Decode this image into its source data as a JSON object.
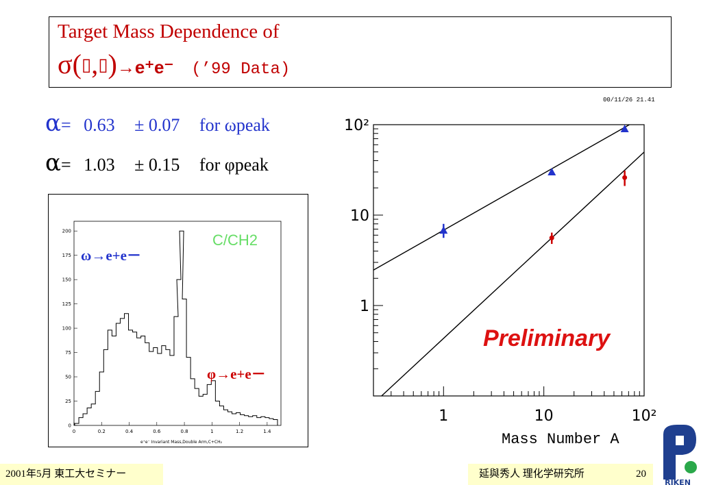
{
  "title": {
    "line1": "Target Mass Dependence of",
    "sigma": "σ(",
    "sym1": "▯",
    "comma": ",",
    "sym2": "▯",
    "close": ")",
    "arrow": "→",
    "products": "e⁺e⁻",
    "data_tag": "(’99 Data)"
  },
  "results": [
    {
      "alpha": "α",
      "eq": "=",
      "value": "0.63",
      "pm": "±",
      "error": "0.07",
      "label": "for ωpeak",
      "color": "#2233cc"
    },
    {
      "alpha": "α",
      "eq": "=",
      "value": "1.03",
      "pm": "±",
      "error": "0.15",
      "label": "for φpeak",
      "color": "#000000"
    }
  ],
  "stamp": "00/11/26  21.41",
  "footer": {
    "left": "2001年5月  東工大セミナー",
    "right": "延與秀人  理化学研究所",
    "page": "20"
  },
  "logo_text": "RIKEN",
  "colors": {
    "title": "#c00000",
    "omega": "#2233cc",
    "phi": "#cc0000",
    "preliminary": "#dd1111",
    "ch2": "#66dd66"
  },
  "chart_data": [
    {
      "type": "line",
      "subtype": "histogram",
      "title": "C/CH2",
      "xlabel": "e⁺e⁻ Invariant Mass,Double Arm,C+CH₂",
      "ylabel": "",
      "xlim": [
        0,
        1.5
      ],
      "ylim": [
        0,
        210
      ],
      "xticks": [
        "0",
        "0.2",
        "0.4",
        "0.6",
        "0.8",
        "1",
        "1.2",
        "1.4"
      ],
      "yticks": [
        "0",
        "25",
        "50",
        "75",
        "100",
        "125",
        "150",
        "175",
        "200"
      ],
      "annotations": [
        "ω→e+e－",
        "φ→e+e－"
      ],
      "x": [
        0.02,
        0.05,
        0.08,
        0.11,
        0.14,
        0.17,
        0.2,
        0.23,
        0.26,
        0.29,
        0.32,
        0.35,
        0.38,
        0.41,
        0.44,
        0.47,
        0.5,
        0.53,
        0.56,
        0.59,
        0.62,
        0.65,
        0.68,
        0.71,
        0.74,
        0.76,
        0.78,
        0.8,
        0.83,
        0.86,
        0.89,
        0.92,
        0.95,
        0.98,
        1.01,
        1.04,
        1.07,
        1.1,
        1.13,
        1.16,
        1.19,
        1.22,
        1.25,
        1.28,
        1.31,
        1.34,
        1.37,
        1.4,
        1.43,
        1.46
      ],
      "values": [
        2,
        8,
        12,
        18,
        22,
        35,
        55,
        78,
        98,
        92,
        105,
        110,
        115,
        98,
        96,
        90,
        92,
        85,
        76,
        80,
        74,
        82,
        78,
        72,
        112,
        150,
        200,
        130,
        70,
        48,
        38,
        30,
        32,
        42,
        46,
        25,
        20,
        16,
        14,
        12,
        13,
        11,
        10,
        9,
        10,
        8,
        9,
        8,
        7,
        6
      ]
    },
    {
      "type": "scatter",
      "xlabel": "Mass Number A",
      "ylabel": "",
      "xscale": "log",
      "yscale": "log",
      "xlim": [
        0.2,
        100
      ],
      "ylim": [
        0.1,
        100
      ],
      "xticks": [
        "1",
        "10",
        "10²"
      ],
      "yticks": [
        "1",
        "10",
        "10²"
      ],
      "annotation": "Preliminary",
      "series": [
        {
          "x": [
            1,
            12,
            64
          ],
          "y": [
            6.8,
            30,
            90
          ],
          "errors": [
            1.2,
            2,
            6
          ],
          "fit": {
            "alpha": 0.63,
            "x0": 1,
            "y0": 6.8
          }
        },
        {
          "x": [
            12,
            64
          ],
          "y": [
            5.6,
            26
          ],
          "errors": [
            0.8,
            5
          ],
          "fit": {
            "alpha": 1.03,
            "x0": 12,
            "y0": 5.6
          }
        }
      ]
    }
  ]
}
